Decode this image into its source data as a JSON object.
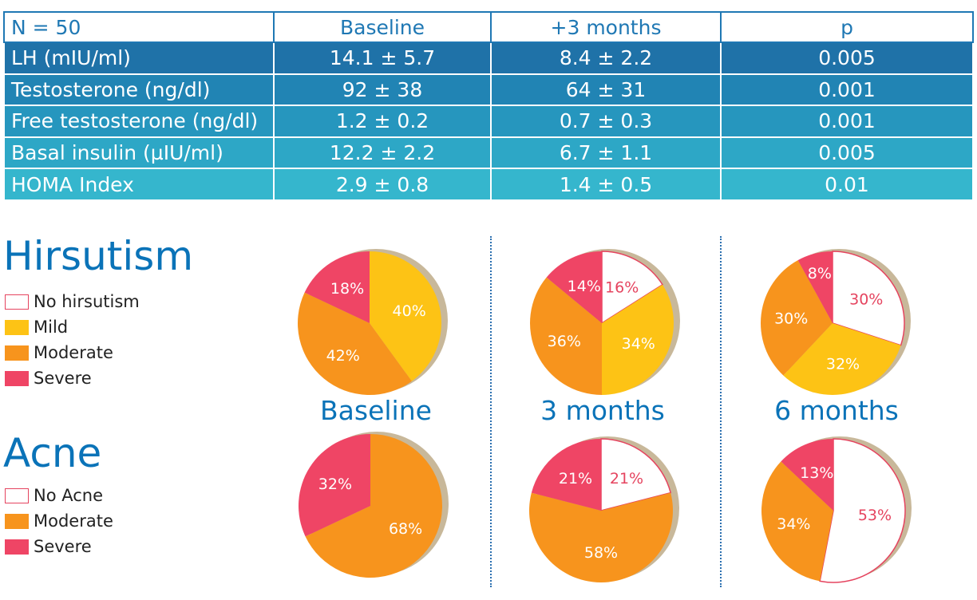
{
  "table": {
    "headers": [
      "N = 50",
      "Baseline",
      "+3 months",
      "p"
    ],
    "rows": [
      {
        "label": "LH (mIU/ml)",
        "baseline": "14.1 ± 5.7",
        "three_months": "8.4 ± 2.2",
        "p": "0.005",
        "color": "#1f72a8"
      },
      {
        "label": "Testosterone (ng/dl)",
        "baseline": "92 ± 38",
        "three_months": "64 ± 31",
        "p": "0.001",
        "color": "#2184b4"
      },
      {
        "label": "Free testosterone (ng/dl)",
        "baseline": "1.2 ± 0.2",
        "three_months": "0.7 ± 0.3",
        "p": "0.001",
        "color": "#2696be"
      },
      {
        "label": "Basal insulin (µIU/ml)",
        "baseline": "12.2 ± 2.2",
        "three_months": "6.7 ± 1.1",
        "p": "0.005",
        "color": "#2da7c6"
      },
      {
        "label": "HOMA Index",
        "baseline": "2.9 ± 0.8",
        "three_months": "1.4 ± 0.5",
        "p": "0.01",
        "color": "#35b6cd"
      }
    ]
  },
  "hirsutism": {
    "title": "Hirsutism",
    "legend": [
      {
        "label": "No hirsutism",
        "color": "#ffffff",
        "border": "#e5445f"
      },
      {
        "label": "Mild",
        "color": "#fdc315"
      },
      {
        "label": "Moderate",
        "color": "#f7941d"
      },
      {
        "label": "Severe",
        "color": "#ef4565"
      }
    ]
  },
  "acne": {
    "title": "Acne",
    "legend": [
      {
        "label": "No Acne",
        "color": "#ffffff",
        "border": "#e5445f"
      },
      {
        "label": "Moderate",
        "color": "#f7941d"
      },
      {
        "label": "Severe",
        "color": "#ef4565"
      }
    ]
  },
  "columns": [
    "Baseline",
    "3 months",
    "6 months"
  ],
  "chart_data": [
    {
      "type": "pie",
      "group": "Hirsutism",
      "period": "Baseline",
      "labels": [
        "No hirsutism",
        "Mild",
        "Moderate",
        "Severe"
      ],
      "values": [
        0,
        40,
        42,
        18
      ],
      "value_labels": [
        "",
        "40%",
        "42%",
        "18%"
      ]
    },
    {
      "type": "pie",
      "group": "Hirsutism",
      "period": "3 months",
      "labels": [
        "No hirsutism",
        "Mild",
        "Moderate",
        "Severe"
      ],
      "values": [
        16,
        34,
        36,
        14
      ],
      "value_labels": [
        "16%",
        "34%",
        "36%",
        "14%"
      ]
    },
    {
      "type": "pie",
      "group": "Hirsutism",
      "period": "6 months",
      "labels": [
        "No hirsutism",
        "Mild",
        "Moderate",
        "Severe"
      ],
      "values": [
        30,
        32,
        30,
        8
      ],
      "value_labels": [
        "30%",
        "32%",
        "30%",
        "8%"
      ]
    },
    {
      "type": "pie",
      "group": "Acne",
      "period": "Baseline",
      "labels": [
        "No Acne",
        "Moderate",
        "Severe"
      ],
      "values": [
        0,
        68,
        32
      ],
      "value_labels": [
        "",
        "68%",
        "32%"
      ]
    },
    {
      "type": "pie",
      "group": "Acne",
      "period": "3 months",
      "labels": [
        "No Acne",
        "Moderate",
        "Severe"
      ],
      "values": [
        21,
        58,
        21
      ],
      "value_labels": [
        "21%",
        "58%",
        "21%"
      ]
    },
    {
      "type": "pie",
      "group": "Acne",
      "period": "6 months",
      "labels": [
        "No Acne",
        "Moderate",
        "Severe"
      ],
      "values": [
        53,
        34,
        13
      ],
      "value_labels": [
        "53%",
        "34%",
        "13%"
      ]
    }
  ],
  "colors": {
    "none": "#ffffff",
    "none_border": "#e5445f",
    "none_text": "#e5445f",
    "mild": "#fdc315",
    "moderate": "#f7941d",
    "severe": "#ef4565",
    "shadow": "#c8b89a",
    "accent": "#0a73b8"
  }
}
